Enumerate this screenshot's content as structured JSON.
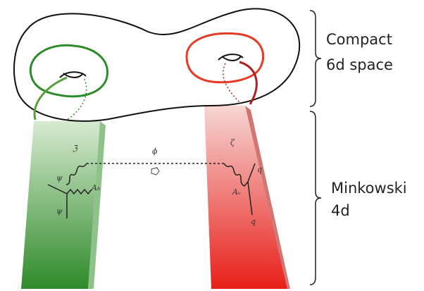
{
  "labels": {
    "compact": [
      "Compact",
      "6d space"
    ],
    "minkowski": [
      "Minkowski",
      "4d"
    ]
  },
  "diagram": {
    "phi": "ϕ",
    "green": {
      "top": "ℨ",
      "psi_top": "ψ",
      "boson": "Aₕ",
      "psi_bottom": "ψ"
    },
    "red": {
      "top": "ζ",
      "q_top": "q",
      "boson": "Aᵥ",
      "q_bottom": "q"
    }
  }
}
